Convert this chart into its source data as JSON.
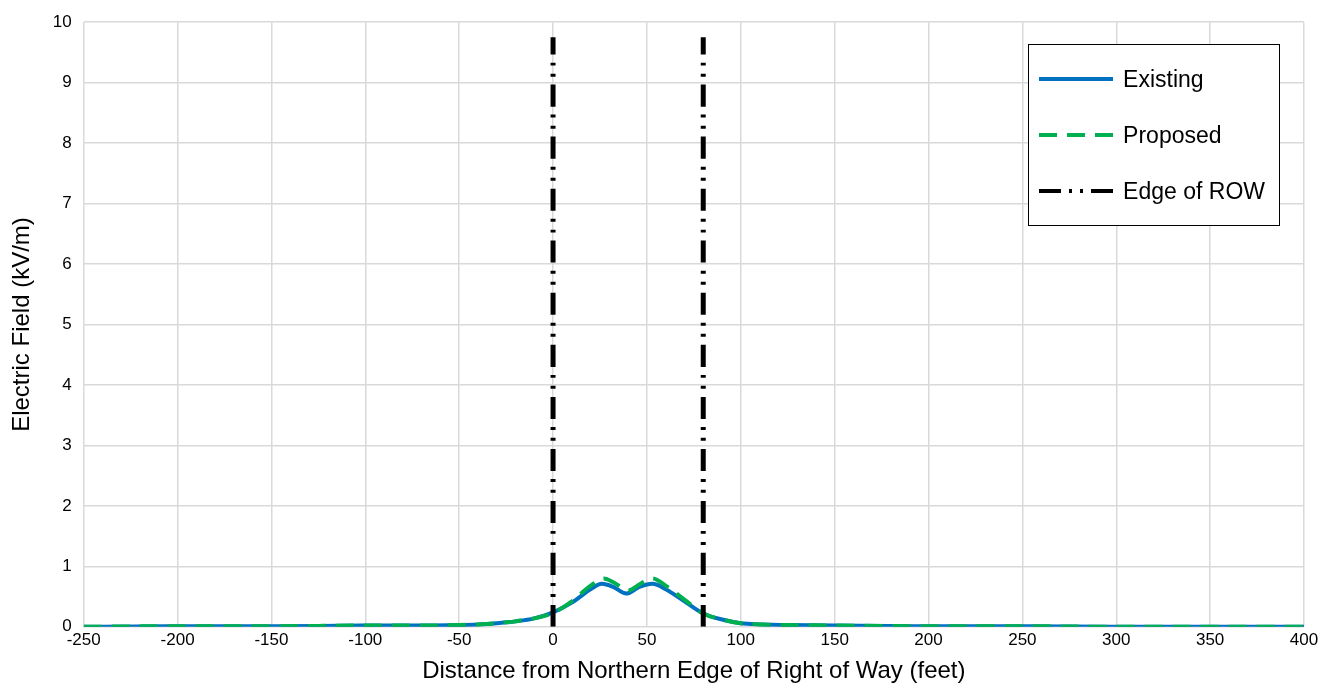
{
  "chart_data": {
    "type": "line",
    "xlabel": "Distance from Northern Edge of Right of Way (feet)",
    "ylabel": "Electric Field (kV/m)",
    "xlim": [
      -250,
      400
    ],
    "xticks": [
      -250,
      -200,
      -150,
      -100,
      -50,
      0,
      50,
      100,
      150,
      200,
      250,
      300,
      350,
      400
    ],
    "ylim": [
      0,
      10
    ],
    "yticks": [
      0,
      1,
      2,
      3,
      4,
      5,
      6,
      7,
      8,
      9,
      10
    ],
    "grid": true,
    "legend": "top right",
    "marker": "none",
    "series": [
      {
        "name": "Existing",
        "color": "#0070c0",
        "line_style": "solid",
        "x": [
          -250,
          -200,
          -150,
          -100,
          -75,
          -50,
          -40,
          -30,
          -20,
          -10,
          0,
          10,
          20,
          26,
          32,
          39,
          46,
          53,
          60,
          70,
          80,
          90,
          100,
          110,
          125,
          150,
          200,
          250,
          300,
          400
        ],
        "values": [
          0,
          0.01,
          0.01,
          0.02,
          0.02,
          0.03,
          0.04,
          0.06,
          0.09,
          0.14,
          0.24,
          0.4,
          0.62,
          0.71,
          0.66,
          0.55,
          0.66,
          0.71,
          0.62,
          0.42,
          0.22,
          0.12,
          0.06,
          0.04,
          0.03,
          0.02,
          0.01,
          0.01,
          0,
          0
        ]
      },
      {
        "name": "Proposed",
        "color": "#00b050",
        "line_style": "dashed",
        "x": [
          -250,
          -200,
          -150,
          -100,
          -75,
          -50,
          -40,
          -30,
          -20,
          -10,
          0,
          10,
          20,
          27,
          33,
          40,
          47,
          53,
          60,
          70,
          80,
          90,
          100,
          110,
          125,
          150,
          200,
          250,
          300,
          400
        ],
        "values": [
          0,
          0.01,
          0.01,
          0.02,
          0.02,
          0.03,
          0.04,
          0.06,
          0.09,
          0.14,
          0.23,
          0.42,
          0.68,
          0.8,
          0.72,
          0.6,
          0.72,
          0.8,
          0.68,
          0.45,
          0.22,
          0.12,
          0.06,
          0.04,
          0.03,
          0.02,
          0.01,
          0.01,
          0,
          0
        ]
      },
      {
        "name": "Edge of ROW",
        "color": "#000000",
        "line_style": "dotted",
        "x": [
          0,
          0,
          null,
          80,
          80
        ],
        "values": [
          0,
          9.75,
          null,
          0,
          9.75
        ]
      }
    ]
  }
}
